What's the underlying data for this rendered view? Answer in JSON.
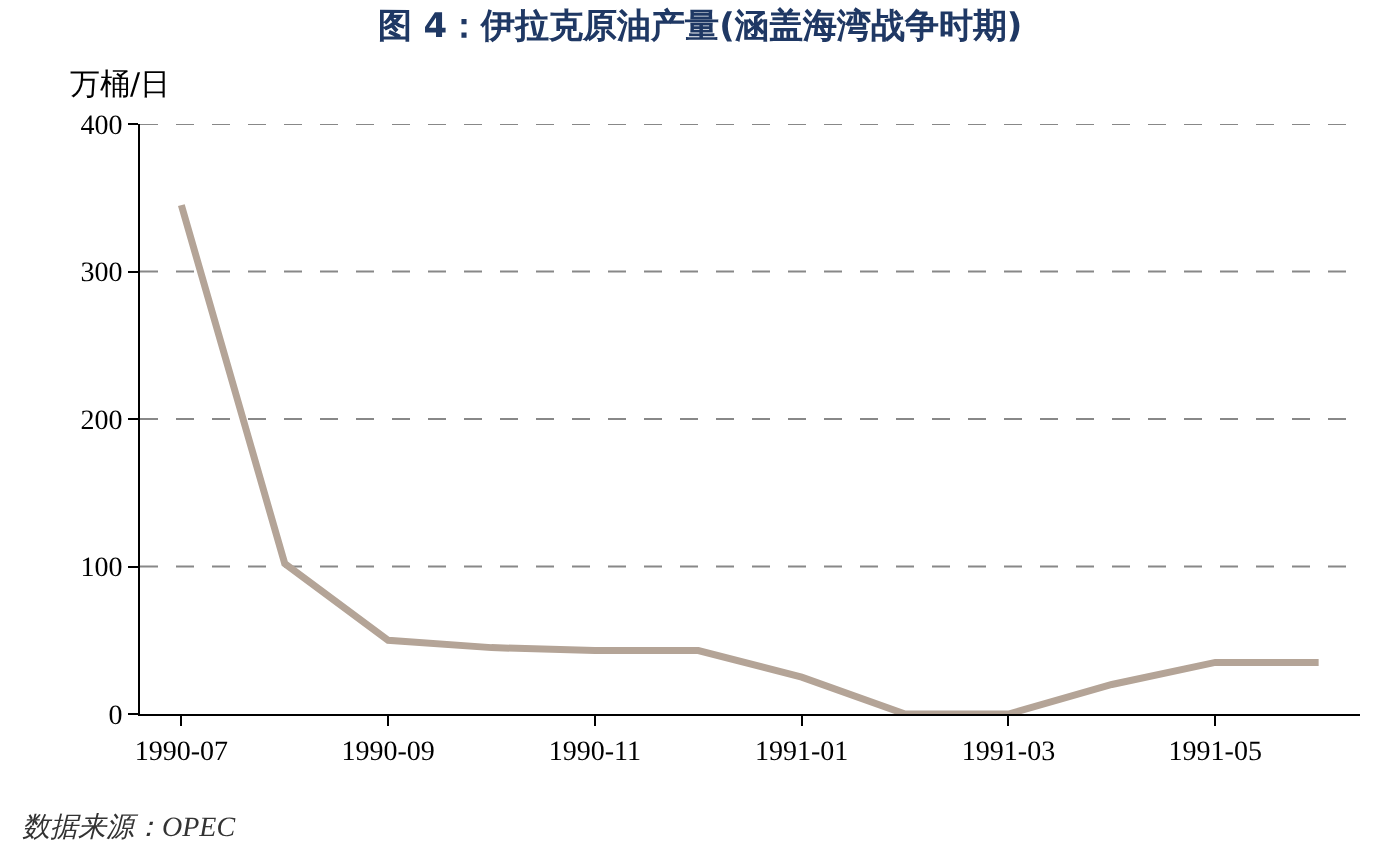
{
  "chart_data": {
    "type": "line",
    "title": "图 4：伊拉克原油产量(涵盖海湾战争时期)",
    "ylabel": "万桶/日",
    "categories": [
      "1990-07",
      null,
      "1990-09",
      null,
      "1990-11",
      null,
      "1991-01",
      null,
      "1991-03",
      null,
      "1991-05",
      null
    ],
    "series": [
      {
        "color": "#b4a497",
        "values": [
          345,
          102,
          50,
          45,
          43,
          43,
          25,
          0,
          0,
          20,
          35,
          35
        ]
      }
    ],
    "ylim": [
      0,
      400
    ],
    "yticks": [
      0,
      100,
      200,
      300,
      400
    ],
    "grid": "y",
    "marker": "none",
    "line_style": "solid",
    "annotations": [
      "数据来源：OPEC"
    ]
  }
}
